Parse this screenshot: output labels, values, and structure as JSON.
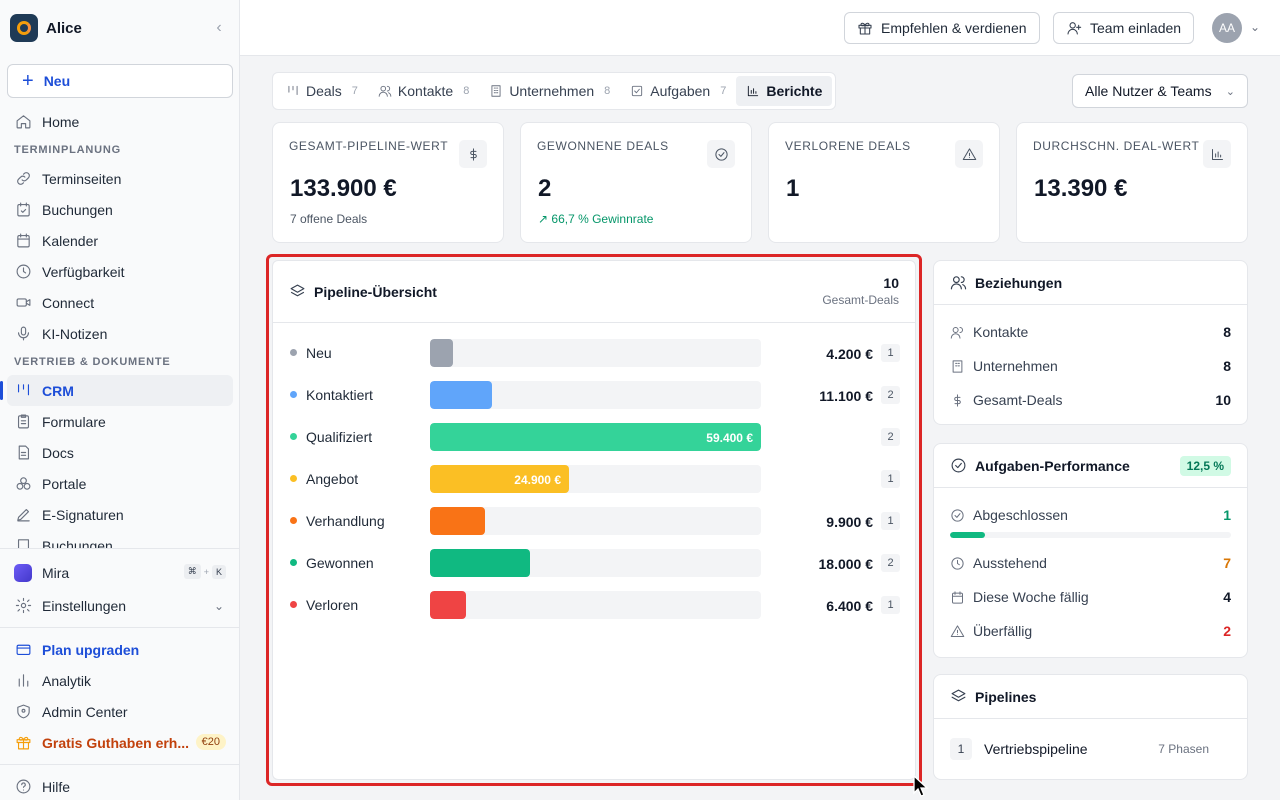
{
  "app": {
    "name": "Alice",
    "collapse_icon": "chevron-left-icon"
  },
  "sidebar": {
    "new_label": "Neu",
    "items_top": [
      {
        "label": "Home",
        "icon": "home-icon"
      }
    ],
    "section_scheduling": "TERMINPLANUNG",
    "items_scheduling": [
      {
        "label": "Terminseiten",
        "icon": "link-icon"
      },
      {
        "label": "Buchungen",
        "icon": "calendar-check-icon"
      },
      {
        "label": "Kalender",
        "icon": "calendar-icon"
      },
      {
        "label": "Verfügbarkeit",
        "icon": "clock-icon"
      },
      {
        "label": "Connect",
        "icon": "video-icon"
      },
      {
        "label": "KI-Notizen",
        "icon": "mic-icon"
      }
    ],
    "section_sales": "VERTRIEB & DOKUMENTE",
    "items_sales": [
      {
        "label": "CRM",
        "icon": "crm-icon",
        "active": true
      },
      {
        "label": "Formulare",
        "icon": "clipboard-icon"
      },
      {
        "label": "Docs",
        "icon": "file-icon"
      },
      {
        "label": "Portale",
        "icon": "portal-icon"
      },
      {
        "label": "E-Signaturen",
        "icon": "pen-icon"
      },
      {
        "label": "Buchungen",
        "icon": "book-icon"
      }
    ],
    "mira": {
      "label": "Mira",
      "shortcut_key1": "⌘",
      "shortcut_plus": "+",
      "shortcut_key2": "K"
    },
    "settings": {
      "label": "Einstellungen"
    },
    "upgrade": {
      "label": "Plan upgraden"
    },
    "analytics": {
      "label": "Analytik"
    },
    "admin": {
      "label": "Admin Center"
    },
    "credit": {
      "label": "Gratis Guthaben erh...",
      "badge": "€20"
    },
    "help": {
      "label": "Hilfe"
    }
  },
  "header": {
    "refer_label": "Empfehlen & verdienen",
    "invite_label": "Team einladen",
    "avatar_initials": "AA"
  },
  "tabs": [
    {
      "label": "Deals",
      "count": "7",
      "icon": "deals-icon"
    },
    {
      "label": "Kontakte",
      "count": "8",
      "icon": "users-icon"
    },
    {
      "label": "Unternehmen",
      "count": "8",
      "icon": "building-icon"
    },
    {
      "label": "Aufgaben",
      "count": "7",
      "icon": "checkbox-icon"
    },
    {
      "label": "Berichte",
      "count": "",
      "icon": "bar-chart-icon",
      "active": true
    }
  ],
  "filter": {
    "selected": "Alle Nutzer & Teams"
  },
  "stats": [
    {
      "label": "GESAMT-PIPELINE-WERT",
      "value": "133.900 €",
      "sub": "7 offene Deals",
      "icon": "dollar-icon"
    },
    {
      "label": "GEWONNENE DEALS",
      "value": "2",
      "sub": "66,7 % Gewinnrate",
      "icon": "check-circle-icon",
      "trend_icon": "trending-up-icon"
    },
    {
      "label": "VERLORENE DEALS",
      "value": "1",
      "sub": "",
      "icon": "alert-triangle-icon"
    },
    {
      "label": "DURCHSCHN. DEAL-WERT",
      "value": "13.390 €",
      "sub": "",
      "icon": "bar-chart-icon"
    }
  ],
  "pipeline": {
    "title": "Pipeline-Übersicht",
    "total": "10",
    "total_label": "Gesamt-Deals",
    "max_value": 59400,
    "stages": [
      {
        "name": "Neu",
        "value": 4200,
        "value_label": "4.200 €",
        "count": "1",
        "color": "#9ca3af",
        "label_inside": false
      },
      {
        "name": "Kontaktiert",
        "value": 11100,
        "value_label": "11.100 €",
        "count": "2",
        "color": "#60a5fa",
        "label_inside": false
      },
      {
        "name": "Qualifiziert",
        "value": 59400,
        "value_label": "59.400 €",
        "count": "2",
        "color": "#34d399",
        "label_inside": true
      },
      {
        "name": "Angebot",
        "value": 24900,
        "value_label": "24.900 €",
        "count": "1",
        "color": "#fbbf24",
        "label_inside": true
      },
      {
        "name": "Verhandlung",
        "value": 9900,
        "value_label": "9.900 €",
        "count": "1",
        "color": "#f97316",
        "label_inside": false
      },
      {
        "name": "Gewonnen",
        "value": 18000,
        "value_label": "18.000 €",
        "count": "2",
        "color": "#10b981",
        "label_inside": false
      },
      {
        "name": "Verloren",
        "value": 6400,
        "value_label": "6.400 €",
        "count": "1",
        "color": "#ef4444",
        "label_inside": false
      }
    ]
  },
  "relations": {
    "title": "Beziehungen",
    "rows": [
      {
        "label": "Kontakte",
        "value": "8",
        "icon": "users-icon"
      },
      {
        "label": "Unternehmen",
        "value": "8",
        "icon": "building-icon"
      },
      {
        "label": "Gesamt-Deals",
        "value": "10",
        "icon": "dollar-icon"
      }
    ]
  },
  "tasks": {
    "title": "Aufgaben-Performance",
    "badge": "12,5 %",
    "completed_fraction": 0.125,
    "rows": [
      {
        "label": "Abgeschlossen",
        "value": "1",
        "icon": "check-circle-icon",
        "color": "#059669"
      },
      {
        "label": "Ausstehend",
        "value": "7",
        "icon": "clock-icon",
        "color": "#d97706"
      },
      {
        "label": "Diese Woche fällig",
        "value": "4",
        "icon": "calendar-icon",
        "color": "#111827"
      },
      {
        "label": "Überfällig",
        "value": "2",
        "icon": "alert-triangle-icon",
        "color": "#dc2626"
      }
    ]
  },
  "pipelines": {
    "title": "Pipelines",
    "items": [
      {
        "num": "1",
        "name": "Vertriebspipeline",
        "phases": "7 Phasen"
      }
    ]
  }
}
